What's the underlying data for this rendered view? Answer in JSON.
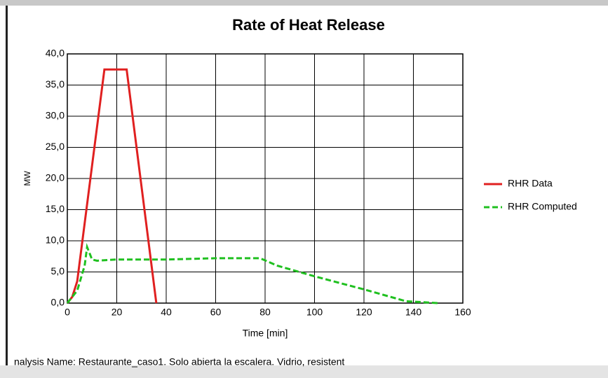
{
  "chart_data": {
    "type": "line",
    "title": "Rate of Heat Release",
    "xlabel": "Time [min]",
    "ylabel": "MW",
    "footnote": "nalysis Name: Restaurante_caso1. Solo abierta la escalera. Vidrio, resistent",
    "xlim": [
      0,
      160
    ],
    "xticks": [
      0,
      20,
      40,
      60,
      80,
      100,
      120,
      140,
      160
    ],
    "ylim": [
      0,
      40
    ],
    "yticks": [
      {
        "value": 0,
        "label": "0,0"
      },
      {
        "value": 5,
        "label": "5,0"
      },
      {
        "value": 10,
        "label": "10,0"
      },
      {
        "value": 15,
        "label": "15,0"
      },
      {
        "value": 20,
        "label": "20,0"
      },
      {
        "value": 25,
        "label": "25,0"
      },
      {
        "value": 30,
        "label": "30,0"
      },
      {
        "value": 35,
        "label": "35,0"
      },
      {
        "value": 40,
        "label": "40,0"
      }
    ],
    "grid": true,
    "legend": "right",
    "series": [
      {
        "name": "RHR Data",
        "color": "#e02020",
        "style": "solid",
        "x": [
          0,
          2,
          4,
          15,
          24,
          36
        ],
        "values": [
          0,
          1,
          3.5,
          37.5,
          37.5,
          0
        ]
      },
      {
        "name": "RHR Computed",
        "color": "#20c020",
        "style": "dashed",
        "x": [
          0,
          4,
          7,
          8,
          10,
          12,
          20,
          40,
          60,
          78,
          85,
          100,
          120,
          137,
          150
        ],
        "values": [
          0,
          2,
          6,
          9,
          7,
          6.8,
          7,
          7,
          7.2,
          7.2,
          6,
          4.3,
          2.2,
          0.3,
          0
        ]
      }
    ]
  }
}
